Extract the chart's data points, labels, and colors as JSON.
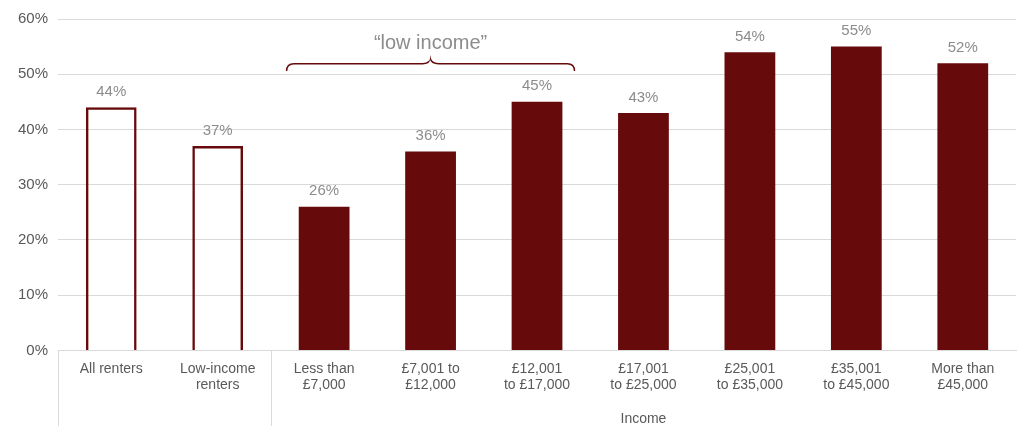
{
  "chart_data": {
    "type": "bar",
    "xlabel": "Income",
    "annotations": [
      "“low income”"
    ],
    "categories": [
      "All renters",
      "Low-income renters",
      "Less than £7,000",
      "£7,001 to £12,000",
      "£12,001 to £17,000",
      "£17,001 to £25,000",
      "£25,001 to £35,000",
      "£35,001 to £45,000",
      "More than £45,000"
    ],
    "series": [
      {
        "color": "#670a0c",
        "values": [
          44,
          37,
          null,
          null,
          null,
          null,
          null,
          null,
          null
        ],
        "value_labels": [
          "44%",
          "37%",
          null,
          null,
          null,
          null,
          null,
          null,
          null
        ]
      },
      {
        "color": "#670a0c",
        "values": [
          null,
          null,
          26,
          36,
          45,
          43,
          54,
          55,
          52
        ],
        "value_labels": [
          null,
          null,
          "26%",
          "36%",
          "45%",
          "43%",
          "54%",
          "55%",
          "52%"
        ]
      }
    ],
    "ylim": [
      0,
      60
    ],
    "yticks": [
      {
        "value": 0,
        "label": "0%"
      },
      {
        "value": 10,
        "label": "10%"
      },
      {
        "value": 20,
        "label": "20%"
      },
      {
        "value": 30,
        "label": "30%"
      },
      {
        "value": 40,
        "label": "40%"
      },
      {
        "value": 50,
        "label": "50%"
      },
      {
        "value": 60,
        "label": "60%"
      }
    ],
    "grid": "y"
  }
}
